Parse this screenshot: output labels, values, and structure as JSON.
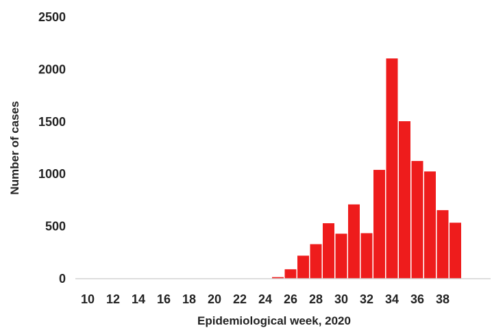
{
  "chart_data": {
    "type": "bar",
    "title": "",
    "xlabel": "Epidemiological week, 2020",
    "ylabel": "Number of cases",
    "ylim": [
      0,
      2500
    ],
    "yticks": [
      0,
      500,
      1000,
      1500,
      2000,
      2500
    ],
    "xtick_labels": [
      "10",
      "12",
      "14",
      "16",
      "18",
      "20",
      "22",
      "24",
      "26",
      "28",
      "30",
      "32",
      "34",
      "36",
      "38"
    ],
    "categories": [
      10,
      11,
      12,
      13,
      14,
      15,
      16,
      17,
      18,
      19,
      20,
      21,
      22,
      23,
      24,
      25,
      26,
      27,
      28,
      29,
      30,
      31,
      32,
      33,
      34,
      35,
      36,
      37,
      38,
      39
    ],
    "values": [
      0,
      0,
      2,
      5,
      2,
      0,
      0,
      0,
      0,
      0,
      0,
      2,
      2,
      3,
      5,
      20,
      95,
      225,
      335,
      535,
      435,
      715,
      440,
      1045,
      2110,
      1510,
      1130,
      1030,
      660,
      540
    ],
    "bar_color": "#ee1c1c",
    "grid": false
  }
}
